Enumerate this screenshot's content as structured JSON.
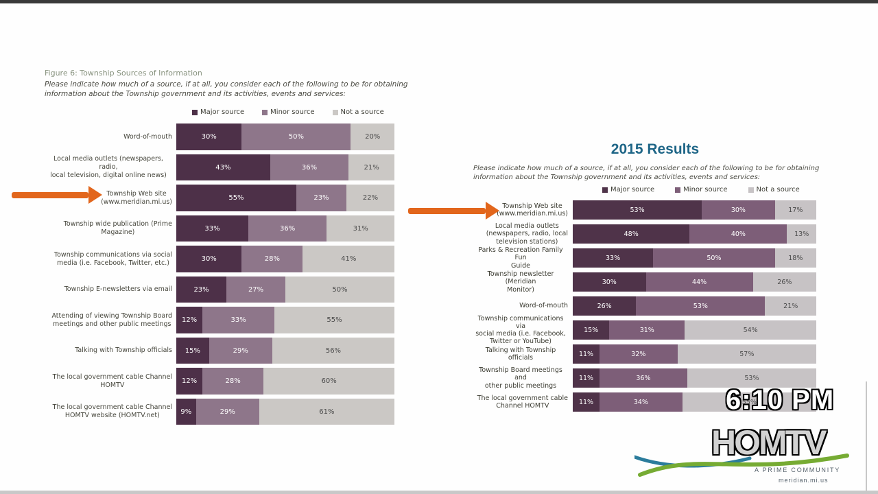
{
  "page": {
    "top_strip_color": "#3a3a3a",
    "bottom_strip_color": "#c8c8c8",
    "background": "#fefefe"
  },
  "overlay": {
    "clock_text": "6:10 PM",
    "arrow_color": "#e2661c",
    "logo": {
      "name": "HOMTV",
      "tagline": "A PRIME COMMUNITY",
      "url": "meridian.mi.us",
      "swoosh_green": "#76ab33",
      "swoosh_blue": "#2b7c9c"
    }
  },
  "chart_data": [
    {
      "type": "bar",
      "stacked": true,
      "orientation": "horizontal",
      "title": "Figure 6: Township Sources of Information",
      "subtitle": "Please indicate how much of a source, if at all, you consider each of the following to be for obtaining information about the Township government and its activities, events and services:",
      "legend_position": "top",
      "xlim": [
        0,
        100
      ],
      "unit": "%",
      "colors": [
        "#4d3048",
        "#8e768a",
        "#cbc8c5"
      ],
      "categories": [
        "Word-of-mouth",
        "Local media outlets (newspapers, radio,\nlocal television, digital online news)",
        "Township Web site\n(www.meridian.mi.us)",
        "Township wide publication (Prime\nMagazine)",
        "Township communications via social\nmedia (i.e. Facebook, Twitter, etc.)",
        "Township E-newsletters via email",
        "Attending of viewing Township Board\nmeetings and other public meetings",
        "Talking with Township officials",
        "The local government cable Channel\nHOMTV",
        "The local government cable Channel\nHOMTV website (HOMTV.net)"
      ],
      "series": [
        {
          "name": "Major source",
          "values": [
            30,
            43,
            55,
            33,
            30,
            23,
            12,
            15,
            12,
            9
          ]
        },
        {
          "name": "Minor source",
          "values": [
            50,
            36,
            23,
            36,
            28,
            27,
            33,
            29,
            28,
            29
          ]
        },
        {
          "name": "Not a source",
          "values": [
            20,
            21,
            22,
            31,
            41,
            50,
            55,
            56,
            60,
            61
          ]
        }
      ],
      "highlighted_category": "Township Web site (www.meridian.mi.us)"
    },
    {
      "type": "bar",
      "stacked": true,
      "orientation": "horizontal",
      "title": "2015 Results",
      "title_color": "#1f6687",
      "subtitle": "Please indicate how much of a source, if at all, you consider each of the following to be for obtaining information about the Township government and its activities, events and services:",
      "legend_position": "top",
      "xlim": [
        0,
        100
      ],
      "unit": "%",
      "colors": [
        "#4f3349",
        "#7d5e78",
        "#c7c3c5"
      ],
      "categories": [
        "Township Web site\n(www.meridian.mi.us)",
        "Local media outlets\n(newspapers, radio, local\ntelevision stations)",
        "Parks & Recreation Family Fun\nGuide",
        "Township newsletter (Meridian\nMonitor)",
        "Word-of-mouth",
        "Township communications via\nsocial media (i.e. Facebook,\nTwitter or YouTube)",
        "Talking with Township officials",
        "Township Board meetings and\nother public meetings",
        "The local government cable\nChannel HOMTV"
      ],
      "series": [
        {
          "name": "Major source",
          "values": [
            53,
            48,
            33,
            30,
            26,
            15,
            11,
            11,
            11
          ]
        },
        {
          "name": "Minor source",
          "values": [
            30,
            40,
            50,
            44,
            53,
            31,
            32,
            36,
            34
          ]
        },
        {
          "name": "Not a source",
          "values": [
            17,
            13,
            18,
            26,
            21,
            54,
            57,
            53,
            55
          ]
        }
      ],
      "highlighted_category": "Township Web site (www.meridian.mi.us)"
    }
  ]
}
